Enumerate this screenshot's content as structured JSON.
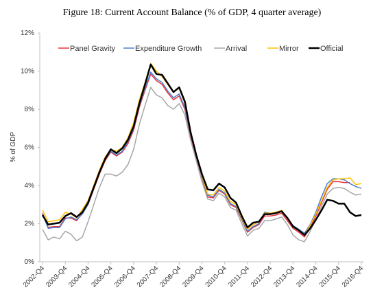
{
  "chart_data": {
    "type": "line",
    "title": "Figure 18:  Current Account Balance (% of GDP, 4 quarter average)",
    "y_label": "% of GDP",
    "categories": [
      "2002-Q4",
      null,
      null,
      null,
      "2003-Q4",
      null,
      null,
      null,
      "2004-Q4",
      null,
      null,
      null,
      "2005-Q4",
      null,
      null,
      null,
      "2006-Q4",
      null,
      null,
      null,
      "2007-Q4",
      null,
      null,
      null,
      "2008-Q4",
      null,
      null,
      null,
      "2009-Q4",
      null,
      null,
      null,
      "2010-Q4",
      null,
      null,
      null,
      "2011-Q4",
      null,
      null,
      null,
      "2012-Q4",
      null,
      null,
      null,
      "2013-Q4",
      null,
      null,
      null,
      "2014-Q4",
      null,
      null,
      null,
      "2015-Q4",
      null,
      null,
      null,
      "2016-Q4"
    ],
    "ylim": [
      0,
      12
    ],
    "yticks": [
      {
        "value": 0,
        "label": "0%"
      },
      {
        "value": 2,
        "label": "2%"
      },
      {
        "value": 4,
        "label": "4%"
      },
      {
        "value": 6,
        "label": "6%"
      },
      {
        "value": 8,
        "label": "8%"
      },
      {
        "value": 10,
        "label": "10%"
      },
      {
        "value": 12,
        "label": "12%"
      }
    ],
    "grid": false,
    "legend": "top",
    "series": [
      {
        "name": "Panel Gravity",
        "color": "#e8303a",
        "width": 1.5,
        "values": [
          2.55,
          1.8,
          1.85,
          1.85,
          2.3,
          2.3,
          2.15,
          2.55,
          3.0,
          3.8,
          4.6,
          5.3,
          5.75,
          5.55,
          5.75,
          6.2,
          6.9,
          8.1,
          9.0,
          9.85,
          9.5,
          9.3,
          8.85,
          8.5,
          8.7,
          8.0,
          6.6,
          5.5,
          4.4,
          3.4,
          3.35,
          3.75,
          3.55,
          3.0,
          2.85,
          2.2,
          1.55,
          1.8,
          1.95,
          2.4,
          2.4,
          2.45,
          2.55,
          2.15,
          1.75,
          1.55,
          1.3,
          1.8,
          2.4,
          3.1,
          3.8,
          4.2,
          4.2,
          4.15,
          4.15,
          null,
          null
        ]
      },
      {
        "name": "Expenditure Growth",
        "color": "#4a7fd0",
        "width": 1.5,
        "values": [
          2.5,
          1.75,
          1.8,
          1.8,
          2.25,
          2.35,
          2.2,
          2.5,
          3.0,
          3.85,
          4.65,
          5.35,
          5.8,
          5.6,
          5.8,
          6.3,
          7.0,
          8.2,
          9.1,
          9.95,
          9.6,
          9.4,
          8.95,
          8.6,
          8.8,
          8.1,
          6.7,
          5.55,
          4.45,
          3.5,
          3.4,
          3.8,
          3.6,
          3.05,
          2.9,
          2.25,
          1.6,
          1.85,
          2.0,
          2.6,
          2.55,
          2.6,
          2.7,
          2.25,
          1.9,
          1.7,
          1.5,
          1.95,
          2.6,
          3.4,
          4.1,
          4.35,
          4.35,
          4.3,
          4.1,
          3.95,
          3.85
        ]
      },
      {
        "name": "Arrival",
        "color": "#a6a6a6",
        "width": 1.5,
        "values": [
          1.7,
          1.15,
          1.3,
          1.2,
          1.6,
          1.45,
          1.1,
          1.3,
          2.1,
          3.0,
          3.9,
          4.6,
          4.6,
          4.5,
          4.7,
          5.1,
          5.9,
          7.2,
          8.2,
          9.15,
          8.75,
          8.6,
          8.2,
          8.0,
          8.3,
          7.7,
          6.4,
          5.3,
          4.2,
          3.3,
          3.2,
          3.6,
          3.4,
          2.85,
          2.7,
          2.0,
          1.35,
          1.65,
          1.75,
          2.15,
          2.15,
          2.25,
          2.35,
          1.95,
          1.4,
          1.15,
          1.05,
          1.6,
          2.2,
          2.9,
          3.55,
          3.85,
          3.9,
          3.85,
          3.65,
          3.5,
          3.55
        ]
      },
      {
        "name": "Mirror",
        "color": "#ffc000",
        "width": 1.5,
        "values": [
          2.7,
          2.1,
          2.15,
          2.2,
          2.6,
          2.5,
          2.3,
          2.75,
          3.2,
          4.0,
          4.8,
          5.5,
          5.9,
          5.8,
          6.0,
          6.5,
          7.3,
          8.5,
          9.4,
          10.4,
          10.0,
          9.7,
          9.3,
          8.9,
          9.1,
          8.3,
          6.8,
          5.6,
          4.5,
          3.55,
          3.5,
          3.9,
          3.7,
          3.15,
          3.0,
          2.3,
          1.7,
          1.95,
          2.1,
          2.55,
          2.55,
          2.6,
          2.7,
          2.25,
          1.85,
          1.65,
          1.4,
          1.9,
          2.5,
          3.2,
          3.9,
          4.3,
          4.35,
          4.35,
          4.4,
          4.05,
          4.1
        ]
      },
      {
        "name": "Official",
        "color": "#000000",
        "width": 2.5,
        "values": [
          2.45,
          1.95,
          2.0,
          2.05,
          2.4,
          2.55,
          2.35,
          2.6,
          3.1,
          3.9,
          4.7,
          5.4,
          5.9,
          5.7,
          5.95,
          6.4,
          7.1,
          8.3,
          9.3,
          10.35,
          9.85,
          9.8,
          9.35,
          8.9,
          9.15,
          8.4,
          6.8,
          5.6,
          4.6,
          3.8,
          3.75,
          4.1,
          3.9,
          3.35,
          3.1,
          2.4,
          1.8,
          2.05,
          2.1,
          2.5,
          2.5,
          2.55,
          2.65,
          2.3,
          1.85,
          1.65,
          1.4,
          1.75,
          2.2,
          2.7,
          3.25,
          3.2,
          3.05,
          3.05,
          2.6,
          2.4,
          2.45
        ]
      }
    ]
  }
}
